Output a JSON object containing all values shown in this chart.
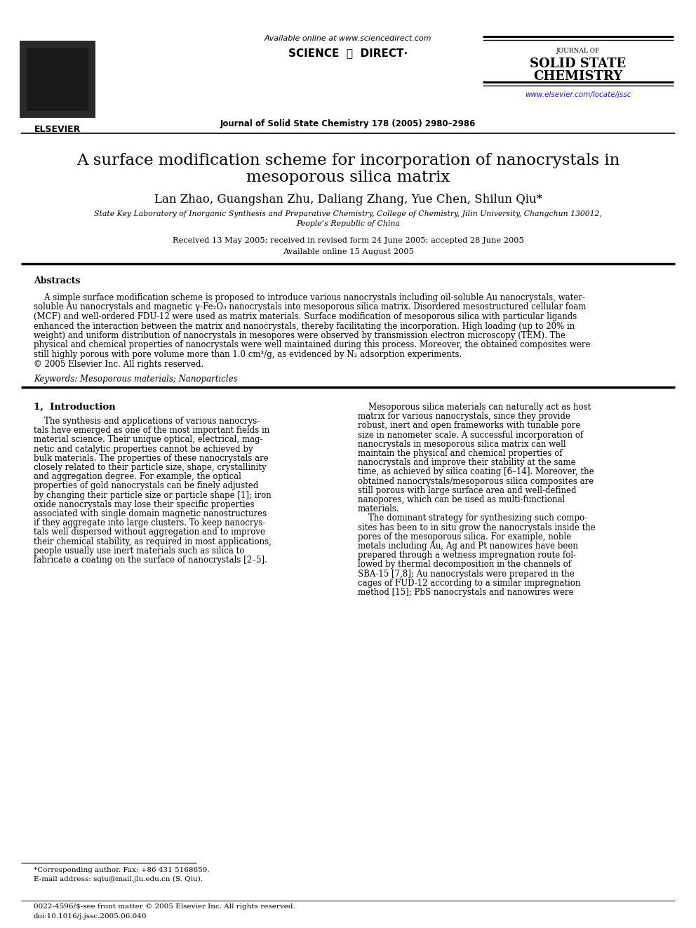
{
  "bg_color": "#ffffff",
  "header": {
    "available_online": "Available online at www.sciencedirect.com",
    "sciencedirect": "SCIENCE ⓓ DIRECT·",
    "journal_name_small": "JOURNAL OF",
    "journal_name_line2": "SOLID STATE",
    "journal_name_line3": "CHEMISTRY",
    "journal_info": "Journal of Solid State Chemistry 178 (2005) 2980–2986",
    "website": "www.elsevier.com/locate/jssc",
    "elsevier_label": "ELSEVIER"
  },
  "title_line1": "A surface modification scheme for incorporation of nanocrystals in",
  "title_line2": "mesoporous silica matrix",
  "authors": "Lan Zhao, Guangshan Zhu, Daliang Zhang, Yue Chen, Shilun Qiu*",
  "affiliation_line1": "State Key Laboratory of Inorganic Synthesis and Preparative Chemistry, College of Chemistry, Jilin University, Changchun 130012,",
  "affiliation_line2": "People’s Republic of China",
  "received": "Received 13 May 2005; received in revised form 24 June 2005; accepted 28 June 2005",
  "available": "Available online 15 August 2005",
  "abstract_heading": "Abstracts",
  "abstract_lines": [
    "    A simple surface modification scheme is proposed to introduce various nanocrystals including oil-soluble Au nanocrystals, water-",
    "soluble Au nanocrystals and magnetic γ-Fe₂O₃ nanocrystals into mesoporous silica matrix. Disordered mesostructured cellular foam",
    "(MCF) and well-ordered FDU-12 were used as matrix materials. Surface modification of mesoporous silica with particular ligands",
    "enhanced the interaction between the matrix and nanocrystals, thereby facilitating the incorporation. High loading (up to 20% in",
    "weight) and uniform distribution of nanocrystals in mesopores were observed by transmission electron microscopy (TEM). The",
    "physical and chemical properties of nanocrystals were well maintained during this process. Moreover, the obtained composites were",
    "still highly porous with pore volume more than 1.0 cm³/g, as evidenced by N₂ adsorption experiments.",
    "© 2005 Elsevier Inc. All rights reserved."
  ],
  "keywords": "Keywords: Mesoporous materials; Nanoparticles",
  "section1_heading": "1,  Introduction",
  "intro_left_lines": [
    "    The synthesis and applications of various nanocrys-",
    "tals have emerged as one of the most important fields in",
    "material science. Their unique optical, electrical, mag-",
    "netic and catalytic properties cannot be achieved by",
    "bulk materials. The properties of these nanocrystals are",
    "closely related to their particle size, shape, crystallinity",
    "and aggregation degree. For example, the optical",
    "properties of gold nanocrystals can be finely adjusted",
    "by changing their particle size or particle shape [1]; iron",
    "oxide nanocrystals may lose their specific properties",
    "associated with single domain magnetic nanostructures",
    "if they aggregate into large clusters. To keep nanocrys-",
    "tals well dispersed without aggregation and to improve",
    "their chemical stability, as required in most applications,",
    "people usually use inert materials such as silica to",
    "fabricate a coating on the surface of nanocrystals [2–5]."
  ],
  "intro_right_lines": [
    "    Mesoporous silica materials can naturally act as host",
    "matrix for various nanocrystals, since they provide",
    "robust, inert and open frameworks with tunable pore",
    "size in nanometer scale. A successful incorporation of",
    "nanocrystals in mesoporous silica matrix can well",
    "maintain the physical and chemical properties of",
    "nanocrystals and improve their stability at the same",
    "time, as achieved by silica coating [6–14]. Moreover, the",
    "obtained nanocrystals/mesoporous silica composites are",
    "still porous with large surface area and well-defined",
    "nanopores, which can be used as multi-functional",
    "materials.",
    "    The dominant strategy for synthesizing such compo-",
    "sites has been to in situ grow the nanocrystals inside the",
    "pores of the mesoporous silica. For example, noble",
    "metals including Au, Ag and Pt nanowires have been",
    "prepared through a wetness impregnation route fol-",
    "lowed by thermal decomposition in the channels of",
    "SBA-15 [7,8]; Au nanocrystals were prepared in the",
    "cages of FUD-12 according to a similar impregnation",
    "method [15]; PbS nanocrystals and nanowires were"
  ],
  "footnote_star": "*Corresponding author. Fax: +86 431 5168659.",
  "footnote_email": "E-mail address: sqiu@mail.jlu.edu.cn (S. Qiu).",
  "footer_issn": "0022-4596/$-see front matter © 2005 Elsevier Inc. All rights reserved.",
  "footer_doi": "doi:10.1016/j.jssc.2005.06.040"
}
